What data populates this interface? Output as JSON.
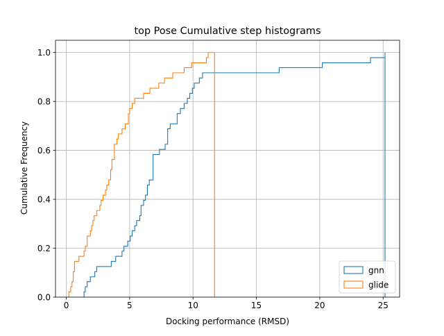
{
  "chart_data": {
    "type": "step",
    "title": "top Pose Cumulative step histograms",
    "xlabel": "Docking performance (RMSD)",
    "ylabel": "Cumulative Frequency",
    "xlim": [
      -0.85,
      26.3
    ],
    "ylim": [
      0,
      1.05
    ],
    "xticks": [
      0,
      5,
      10,
      15,
      20,
      25
    ],
    "yticks": [
      0.0,
      0.2,
      0.4,
      0.6,
      0.8,
      1.0
    ],
    "xtick_labels": [
      "0",
      "5",
      "10",
      "15",
      "20",
      "25"
    ],
    "ytick_labels": [
      "0.0",
      "0.2",
      "0.4",
      "0.6",
      "0.8",
      "1.0"
    ],
    "grid": true,
    "legend_position": "lower-right",
    "series": [
      {
        "name": "gnn",
        "color": "#1f77b4",
        "x": [
          1.4,
          1.5,
          1.65,
          1.9,
          2.25,
          2.4,
          3.55,
          3.9,
          4.4,
          4.55,
          4.85,
          5.05,
          5.2,
          5.4,
          5.55,
          5.8,
          5.9,
          6.1,
          6.25,
          6.4,
          6.55,
          6.85,
          7.35,
          7.8,
          8.0,
          8.2,
          8.75,
          9.0,
          9.3,
          9.55,
          9.75,
          9.95,
          10.1,
          10.5,
          10.75,
          11.2,
          16.8,
          20.2,
          24.0,
          25.15
        ],
        "y": [
          0.021,
          0.042,
          0.063,
          0.083,
          0.104,
          0.125,
          0.146,
          0.167,
          0.188,
          0.208,
          0.229,
          0.25,
          0.271,
          0.292,
          0.313,
          0.333,
          0.375,
          0.396,
          0.417,
          0.458,
          0.479,
          0.583,
          0.604,
          0.625,
          0.688,
          0.708,
          0.75,
          0.771,
          0.792,
          0.813,
          0.833,
          0.854,
          0.875,
          0.896,
          0.917,
          0.917,
          0.938,
          0.958,
          0.979,
          1.0
        ]
      },
      {
        "name": "glide",
        "color": "#ff7f0e",
        "x": [
          0.2,
          0.35,
          0.45,
          0.55,
          0.65,
          1.0,
          1.4,
          1.5,
          1.65,
          1.9,
          2.0,
          2.1,
          2.2,
          2.4,
          2.65,
          2.75,
          2.9,
          3.1,
          3.2,
          3.35,
          3.5,
          3.6,
          3.8,
          4.0,
          4.1,
          4.4,
          4.65,
          4.9,
          5.0,
          5.2,
          5.4,
          6.1,
          6.6,
          7.3,
          7.75,
          8.4,
          9.2,
          9.3,
          9.9,
          11.05,
          11.2,
          11.3,
          11.4,
          11.7
        ],
        "y": [
          0.021,
          0.042,
          0.063,
          0.104,
          0.146,
          0.167,
          0.188,
          0.208,
          0.25,
          0.271,
          0.292,
          0.313,
          0.333,
          0.354,
          0.375,
          0.396,
          0.417,
          0.438,
          0.458,
          0.479,
          0.521,
          0.563,
          0.625,
          0.646,
          0.667,
          0.688,
          0.708,
          0.75,
          0.771,
          0.792,
          0.813,
          0.833,
          0.854,
          0.875,
          0.896,
          0.917,
          0.917,
          0.938,
          0.958,
          0.979,
          1.0,
          1.0,
          1.0,
          1.0
        ]
      }
    ]
  }
}
